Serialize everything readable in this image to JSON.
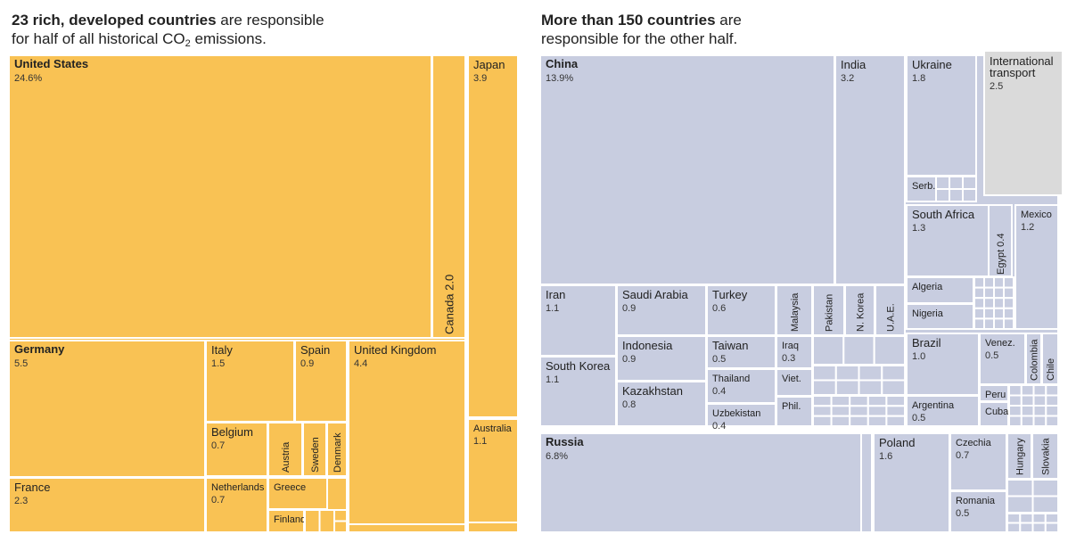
{
  "titles": {
    "left": {
      "bold": "23 rich, developed countries",
      "rest1": " are responsible",
      "line2a": "for half of all historical CO",
      "sub": "2",
      "line2b": " emissions."
    },
    "right": {
      "bold": "More than 150 countries",
      "rest1": " are",
      "line2": "responsible for the other half."
    }
  },
  "colors": {
    "developed": "#f9c254",
    "developing": "#c8cde0",
    "transport": "#dadada",
    "text": "#222222"
  },
  "chart_data": [
    {
      "type": "treemap",
      "title": "23 rich, developed countries are responsible for half of all historical CO2 emissions.",
      "unit": "% of historical CO2 emissions",
      "items": [
        {
          "name": "United States",
          "value": 24.6,
          "label": "24.6%"
        },
        {
          "name": "Germany",
          "value": 5.5,
          "label": "5.5"
        },
        {
          "name": "France",
          "value": 2.3,
          "label": "2.3"
        },
        {
          "name": "Italy",
          "value": 1.5,
          "label": "1.5"
        },
        {
          "name": "Spain",
          "value": 0.9,
          "label": "0.9"
        },
        {
          "name": "Belgium",
          "value": 0.7,
          "label": "0.7"
        },
        {
          "name": "Netherlands",
          "value": 0.7,
          "label": "0.7"
        },
        {
          "name": "Austria",
          "value": null,
          "label": ""
        },
        {
          "name": "Sweden",
          "value": null,
          "label": ""
        },
        {
          "name": "Denmark",
          "value": null,
          "label": ""
        },
        {
          "name": "Greece",
          "value": null,
          "label": ""
        },
        {
          "name": "Finland",
          "value": null,
          "label": ""
        },
        {
          "name": "United Kingdom",
          "value": 4.4,
          "label": "4.4"
        },
        {
          "name": "Canada",
          "value": 2.0,
          "label": "2.0"
        },
        {
          "name": "Japan",
          "value": 3.9,
          "label": "3.9"
        },
        {
          "name": "Australia",
          "value": 1.1,
          "label": "1.1"
        }
      ]
    },
    {
      "type": "treemap",
      "title": "More than 150 countries are responsible for the other half.",
      "unit": "% of historical CO2 emissions",
      "items": [
        {
          "name": "China",
          "value": 13.9,
          "label": "13.9%"
        },
        {
          "name": "India",
          "value": 3.2,
          "label": "3.2"
        },
        {
          "name": "Ukraine",
          "value": 1.8,
          "label": "1.8"
        },
        {
          "name": "Serb.",
          "value": null,
          "label": ""
        },
        {
          "name": "International transport",
          "value": 2.5,
          "label": "2.5"
        },
        {
          "name": "South Africa",
          "value": 1.3,
          "label": "1.3"
        },
        {
          "name": "Egypt",
          "value": 0.4,
          "label": "0.4"
        },
        {
          "name": "Mexico",
          "value": 1.2,
          "label": "1.2"
        },
        {
          "name": "Algeria",
          "value": null,
          "label": ""
        },
        {
          "name": "Nigeria",
          "value": null,
          "label": ""
        },
        {
          "name": "Iran",
          "value": 1.1,
          "label": "1.1"
        },
        {
          "name": "Saudi Arabia",
          "value": 0.9,
          "label": "0.9"
        },
        {
          "name": "Turkey",
          "value": 0.6,
          "label": "0.6"
        },
        {
          "name": "Malaysia",
          "value": null,
          "label": ""
        },
        {
          "name": "Pakistan",
          "value": null,
          "label": ""
        },
        {
          "name": "N. Korea",
          "value": null,
          "label": ""
        },
        {
          "name": "U.A.E.",
          "value": null,
          "label": ""
        },
        {
          "name": "South Korea",
          "value": 1.1,
          "label": "1.1"
        },
        {
          "name": "Indonesia",
          "value": 0.9,
          "label": "0.9"
        },
        {
          "name": "Kazakhstan",
          "value": 0.8,
          "label": "0.8"
        },
        {
          "name": "Taiwan",
          "value": 0.5,
          "label": "0.5"
        },
        {
          "name": "Iraq",
          "value": 0.3,
          "label": "0.3"
        },
        {
          "name": "Thailand",
          "value": 0.4,
          "label": "0.4"
        },
        {
          "name": "Viet.",
          "value": null,
          "label": ""
        },
        {
          "name": "Uzbekistan",
          "value": 0.4,
          "label": "0.4"
        },
        {
          "name": "Phil.",
          "value": null,
          "label": ""
        },
        {
          "name": "Brazil",
          "value": 1.0,
          "label": "1.0"
        },
        {
          "name": "Venez.",
          "value": 0.5,
          "label": "0.5"
        },
        {
          "name": "Colombia",
          "value": null,
          "label": ""
        },
        {
          "name": "Chile",
          "value": null,
          "label": ""
        },
        {
          "name": "Peru",
          "value": null,
          "label": ""
        },
        {
          "name": "Cuba",
          "value": null,
          "label": ""
        },
        {
          "name": "Argentina",
          "value": 0.5,
          "label": "0.5"
        },
        {
          "name": "Russia",
          "value": 6.8,
          "label": "6.8%"
        },
        {
          "name": "Poland",
          "value": 1.6,
          "label": "1.6"
        },
        {
          "name": "Czechia",
          "value": 0.7,
          "label": "0.7"
        },
        {
          "name": "Hungary",
          "value": null,
          "label": ""
        },
        {
          "name": "Slovakia",
          "value": null,
          "label": ""
        },
        {
          "name": "Romania",
          "value": 0.5,
          "label": "0.5"
        }
      ]
    }
  ]
}
